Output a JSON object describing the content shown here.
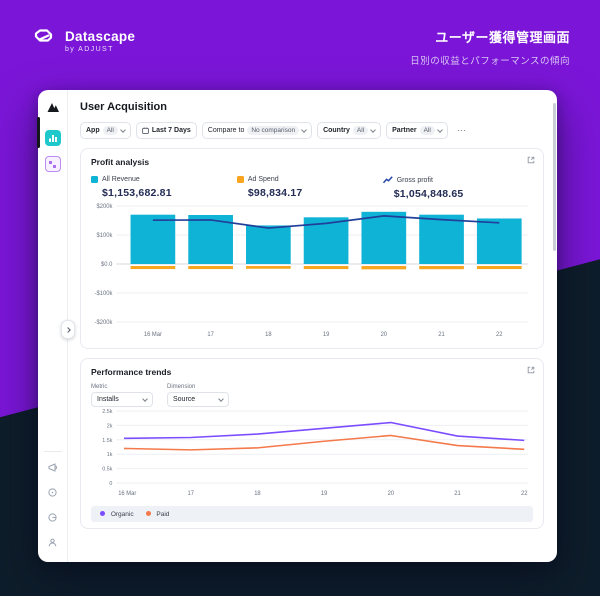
{
  "header": {
    "brand": "Datascape",
    "brand_sub": "by ADJUST",
    "title_ja": "ユーザー獲得管理画面",
    "subtitle_ja": "日別の収益とパフォーマンスの傾向"
  },
  "dashboard": {
    "title": "User Acquisition",
    "filters": {
      "app": {
        "label": "App",
        "value": "All"
      },
      "date": {
        "label": "Last 7 Days"
      },
      "compare": {
        "label": "Compare to",
        "value": "No comparison"
      },
      "country": {
        "label": "Country",
        "value": "All"
      },
      "partner": {
        "label": "Partner",
        "value": "All"
      },
      "more": "⋯"
    },
    "profit": {
      "title": "Profit analysis",
      "legend": [
        {
          "label": "All Revenue",
          "value": "$1,153,682.81",
          "color": "#0fb3d6"
        },
        {
          "label": "Ad Spend",
          "value": "$98,834.17",
          "color": "#f9a51f"
        },
        {
          "label": "Gross profit",
          "value": "$1,054,848.65",
          "color": "#21409a"
        }
      ]
    },
    "performance": {
      "title": "Performance trends",
      "metric": {
        "label": "Metric",
        "value": "Installs"
      },
      "dimension": {
        "label": "Dimension",
        "value": "Source"
      },
      "legend": [
        {
          "label": "Organic",
          "color": "#7c4dff"
        },
        {
          "label": "Paid",
          "color": "#f4794b"
        }
      ]
    }
  },
  "chart_data": [
    {
      "type": "bar",
      "title": "Profit analysis",
      "categories": [
        "16 Mar",
        "17",
        "18",
        "19",
        "20",
        "21",
        "22"
      ],
      "series": [
        {
          "name": "All Revenue",
          "kind": "bar",
          "color": "#0fb3d6",
          "values": [
            170000,
            169000,
            133000,
            161000,
            180000,
            170000,
            157000
          ]
        },
        {
          "name": "Ad Spend",
          "kind": "bar",
          "color": "#f9a51f",
          "values": [
            -14000,
            -14000,
            -13000,
            -14000,
            -15000,
            -14500,
            -14000
          ]
        },
        {
          "name": "Gross profit",
          "kind": "line",
          "color": "#21409a",
          "values": [
            151000,
            152000,
            124000,
            140000,
            166000,
            153000,
            142000
          ]
        }
      ],
      "ylim": [
        -200000,
        200000
      ],
      "yticks": [
        {
          "v": 200000,
          "label": "$200k"
        },
        {
          "v": 100000,
          "label": "$100k"
        },
        {
          "v": 0,
          "label": "$0.0"
        },
        {
          "v": -100000,
          "label": "-$100k"
        },
        {
          "v": -200000,
          "label": "-$200k"
        }
      ],
      "grid": true,
      "legend_position": "top"
    },
    {
      "type": "line",
      "title": "Performance trends",
      "categories": [
        "16 Mar",
        "17",
        "18",
        "19",
        "20",
        "21",
        "22"
      ],
      "series": [
        {
          "name": "Organic",
          "color": "#7c4dff",
          "values": [
            1550,
            1580,
            1700,
            1900,
            2100,
            1630,
            1480
          ]
        },
        {
          "name": "Paid",
          "color": "#f4794b",
          "values": [
            1200,
            1150,
            1220,
            1450,
            1650,
            1300,
            1170
          ]
        }
      ],
      "ylim": [
        0,
        2500
      ],
      "yticks": [
        {
          "v": 2500,
          "label": "2.5k"
        },
        {
          "v": 2000,
          "label": "2k"
        },
        {
          "v": 1500,
          "label": "1.5k"
        },
        {
          "v": 1000,
          "label": "1k"
        },
        {
          "v": 500,
          "label": "0.5k"
        },
        {
          "v": 0,
          "label": "0"
        }
      ],
      "grid": true,
      "legend_position": "bottom"
    }
  ]
}
